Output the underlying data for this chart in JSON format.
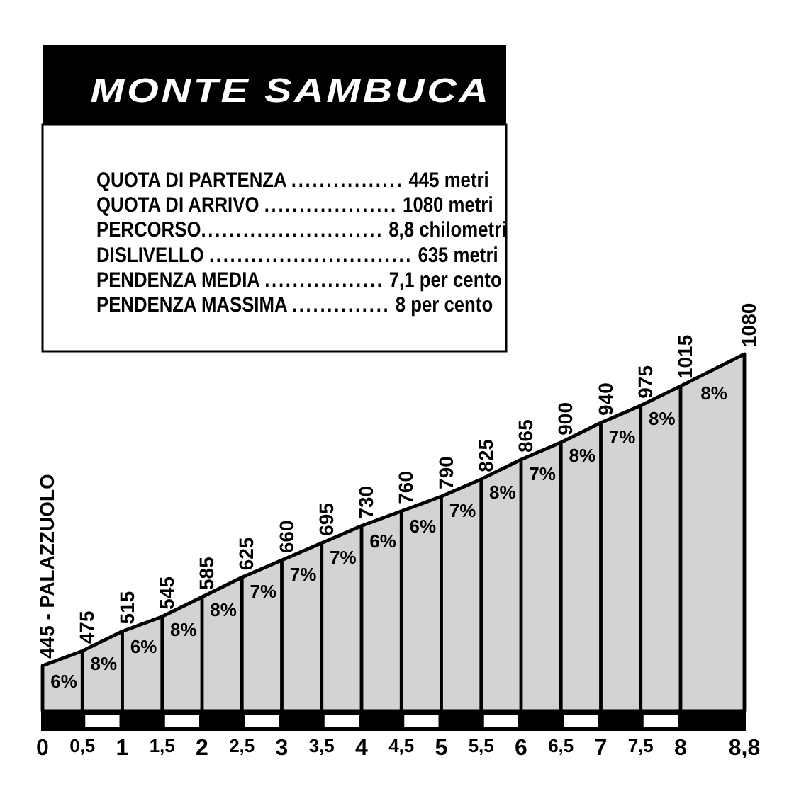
{
  "chart_data": {
    "type": "area",
    "title": "MONTE SAMBUCA",
    "x": [
      0,
      0.5,
      1,
      1.5,
      2,
      2.5,
      3,
      3.5,
      4,
      4.5,
      5,
      5.5,
      6,
      6.5,
      7,
      7.5,
      8,
      8.8
    ],
    "values": [
      445,
      475,
      515,
      545,
      585,
      625,
      660,
      695,
      730,
      760,
      790,
      825,
      865,
      900,
      940,
      975,
      1015,
      1080
    ],
    "value_labels": [
      "445 - PALAZZUOLO",
      "475",
      "515",
      "545",
      "585",
      "625",
      "660",
      "695",
      "730",
      "760",
      "790",
      "825",
      "865",
      "900",
      "940",
      "975",
      "1015",
      "1080"
    ],
    "color": "#d3d3d3",
    "xlim": [
      0,
      8.8
    ],
    "xticks": [
      0,
      {
        "value": 0.5,
        "label": "0,5"
      },
      1,
      {
        "value": 1.5,
        "label": "1,5"
      },
      2,
      {
        "value": 2.5,
        "label": "2,5"
      },
      3,
      {
        "value": 3.5,
        "label": "3,5"
      },
      4,
      {
        "value": 4.5,
        "label": "4,5"
      },
      5,
      {
        "value": 5.5,
        "label": "5,5"
      },
      6,
      {
        "value": 6.5,
        "label": "6,5"
      },
      7,
      {
        "value": 7.5,
        "label": "7,5"
      },
      8,
      {
        "value": 8.8,
        "label": "8,8"
      }
    ],
    "tick_labels": "x",
    "annotations": [
      "QUOTA DI PARTENZA ................ 445 metri",
      "QUOTA DI ARRIVO ................... 1080 metri",
      "PERCORSO.......................... 8,8 chilometri",
      "DISLIVELLO ............................. 635 metri",
      "PENDENZA MEDIA ................. 7,1 per cento",
      "PENDENZA MASSIMA .............. 8 per cento",
      {
        "text": "6%",
        "x": 0.25,
        "y": 460
      },
      {
        "text": "8%",
        "x": 0.75,
        "y": 495
      },
      {
        "text": "6%",
        "x": 1.25,
        "y": 530
      },
      {
        "text": "8%",
        "x": 1.75,
        "y": 565
      },
      {
        "text": "8%",
        "x": 2.25,
        "y": 605
      },
      {
        "text": "7%",
        "x": 2.75,
        "y": 642.5
      },
      {
        "text": "7%",
        "x": 3.25,
        "y": 677.5
      },
      {
        "text": "7%",
        "x": 3.75,
        "y": 712.5
      },
      {
        "text": "6%",
        "x": 4.25,
        "y": 745
      },
      {
        "text": "6%",
        "x": 4.75,
        "y": 775
      },
      {
        "text": "7%",
        "x": 5.25,
        "y": 807.5
      },
      {
        "text": "8%",
        "x": 5.75,
        "y": 845
      },
      {
        "text": "7%",
        "x": 6.25,
        "y": 882.5
      },
      {
        "text": "8%",
        "x": 6.75,
        "y": 920
      },
      {
        "text": "7%",
        "x": 7.25,
        "y": 957.5
      },
      {
        "text": "8%",
        "x": 7.75,
        "y": 995
      },
      {
        "text": "8%",
        "x": 8.4,
        "y": 1047.5
      }
    ]
  }
}
